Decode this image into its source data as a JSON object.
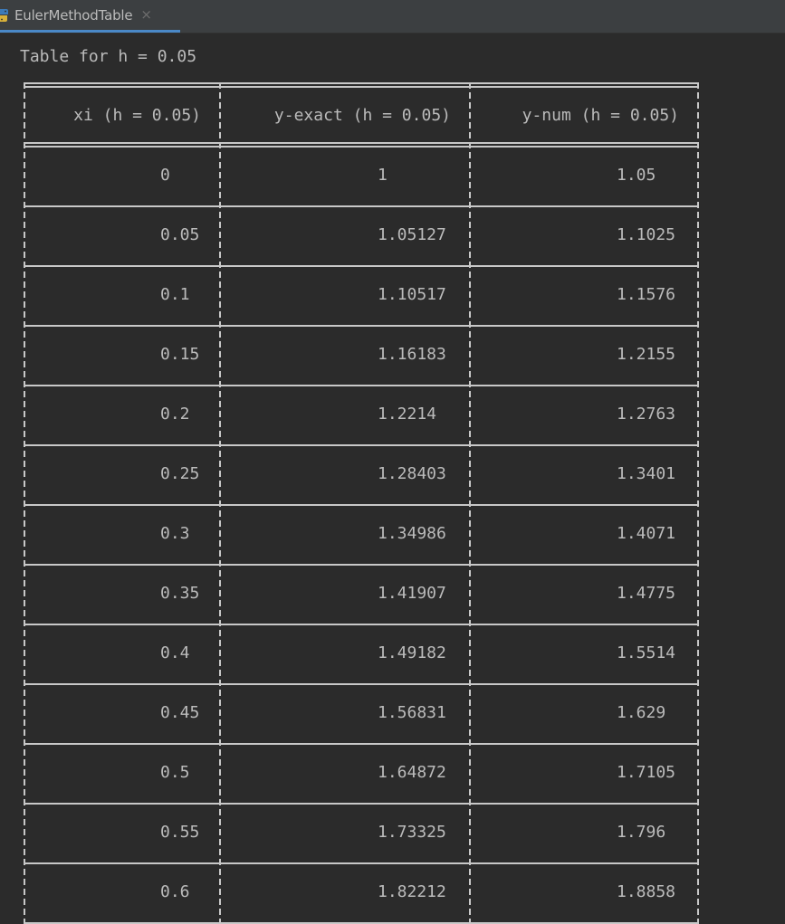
{
  "tab": {
    "title": "EulerMethodTable",
    "icon": "python-file-icon",
    "close_glyph": "×",
    "accent": "#4a88c7"
  },
  "console": {
    "heading": "Table for h = 0.05",
    "columns": [
      "xi (h = 0.05)",
      "y-exact (h = 0.05)",
      "y-num (h = 0.05)"
    ],
    "rows": [
      [
        "0",
        "1",
        "1.05"
      ],
      [
        "0.05",
        "1.05127",
        "1.1025"
      ],
      [
        "0.1",
        "1.10517",
        "1.1576"
      ],
      [
        "0.15",
        "1.16183",
        "1.2155"
      ],
      [
        "0.2",
        "1.2214",
        "1.2763"
      ],
      [
        "0.25",
        "1.28403",
        "1.3401"
      ],
      [
        "0.3",
        "1.34986",
        "1.4071"
      ],
      [
        "0.35",
        "1.41907",
        "1.4775"
      ],
      [
        "0.4",
        "1.49182",
        "1.5514"
      ],
      [
        "0.45",
        "1.56831",
        "1.629"
      ],
      [
        "0.5",
        "1.64872",
        "1.7105"
      ],
      [
        "0.55",
        "1.73325",
        "1.796"
      ],
      [
        "0.6",
        "1.82212",
        "1.8858"
      ]
    ]
  }
}
